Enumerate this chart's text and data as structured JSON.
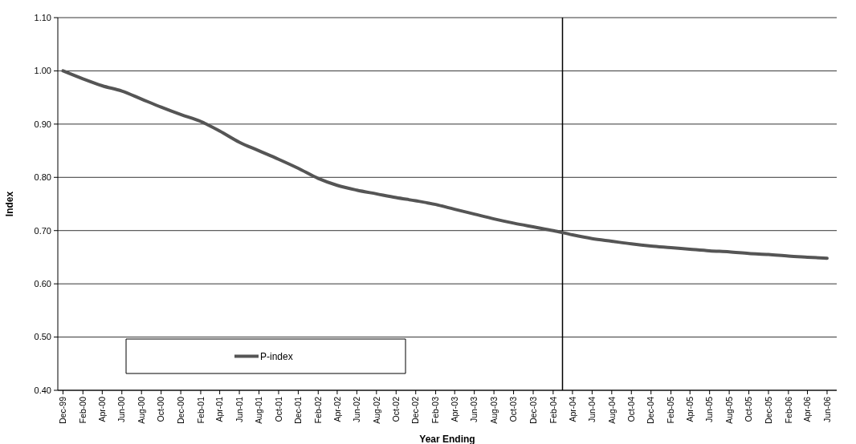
{
  "chart_data": {
    "type": "line",
    "xlabel": "Year Ending",
    "ylabel": "Index",
    "x": [
      "1999-12",
      "2000-02",
      "2000-04",
      "2000-06",
      "2000-08",
      "2000-10",
      "2000-12",
      "2001-02",
      "2001-04",
      "2001-06",
      "2001-08",
      "2001-10",
      "2001-12",
      "2002-02",
      "2002-04",
      "2002-06",
      "2002-08",
      "2002-10",
      "2002-12",
      "2003-02",
      "2003-04",
      "2003-06",
      "2003-08",
      "2003-10",
      "2003-12",
      "2004-02",
      "2004-04",
      "2004-06",
      "2004-08",
      "2004-10",
      "2004-12",
      "2005-02",
      "2005-04",
      "2005-06",
      "2005-08",
      "2005-10",
      "2005-12",
      "2006-02",
      "2006-04",
      "2006-06"
    ],
    "series": [
      {
        "name": "P-index",
        "color": "#555555",
        "values": [
          1.0,
          0.985,
          0.972,
          0.962,
          0.947,
          0.932,
          0.918,
          0.905,
          0.887,
          0.866,
          0.85,
          0.834,
          0.817,
          0.798,
          0.785,
          0.776,
          0.769,
          0.762,
          0.756,
          0.749,
          0.74,
          0.731,
          0.722,
          0.714,
          0.707,
          0.7,
          0.692,
          0.685,
          0.68,
          0.675,
          0.671,
          0.668,
          0.665,
          0.662,
          0.66,
          0.657,
          0.655,
          0.652,
          0.65,
          0.648
        ]
      }
    ],
    "xlim": [
      "1999-11-15",
      "2006-07-01"
    ],
    "xticks": [
      {
        "value": "1999-12",
        "label": "Dec-99"
      },
      {
        "value": "2000-02",
        "label": "Feb-00"
      },
      {
        "value": "2000-04",
        "label": "Apr-00"
      },
      {
        "value": "2000-06",
        "label": "Jun-00"
      },
      {
        "value": "2000-08",
        "label": "Aug-00"
      },
      {
        "value": "2000-10",
        "label": "Oct-00"
      },
      {
        "value": "2000-12",
        "label": "Dec-00"
      },
      {
        "value": "2001-02",
        "label": "Feb-01"
      },
      {
        "value": "2001-04",
        "label": "Apr-01"
      },
      {
        "value": "2001-06",
        "label": "Jun-01"
      },
      {
        "value": "2001-08",
        "label": "Aug-01"
      },
      {
        "value": "2001-10",
        "label": "Oct-01"
      },
      {
        "value": "2001-12",
        "label": "Dec-01"
      },
      {
        "value": "2002-02",
        "label": "Feb-02"
      },
      {
        "value": "2002-04",
        "label": "Apr-02"
      },
      {
        "value": "2002-06",
        "label": "Jun-02"
      },
      {
        "value": "2002-08",
        "label": "Aug-02"
      },
      {
        "value": "2002-10",
        "label": "Oct-02"
      },
      {
        "value": "2002-12",
        "label": "Dec-02"
      },
      {
        "value": "2003-02",
        "label": "Feb-03"
      },
      {
        "value": "2003-04",
        "label": "Apr-03"
      },
      {
        "value": "2003-06",
        "label": "Jun-03"
      },
      {
        "value": "2003-08",
        "label": "Aug-03"
      },
      {
        "value": "2003-10",
        "label": "Oct-03"
      },
      {
        "value": "2003-12",
        "label": "Dec-03"
      },
      {
        "value": "2004-02",
        "label": "Feb-04"
      },
      {
        "value": "2004-04",
        "label": "Apr-04"
      },
      {
        "value": "2004-06",
        "label": "Jun-04"
      },
      {
        "value": "2004-08",
        "label": "Aug-04"
      },
      {
        "value": "2004-10",
        "label": "Oct-04"
      },
      {
        "value": "2004-12",
        "label": "Dec-04"
      },
      {
        "value": "2005-02",
        "label": "Feb-05"
      },
      {
        "value": "2005-04",
        "label": "Apr-05"
      },
      {
        "value": "2005-06",
        "label": "Jun-05"
      },
      {
        "value": "2005-08",
        "label": "Aug-05"
      },
      {
        "value": "2005-10",
        "label": "Oct-05"
      },
      {
        "value": "2005-12",
        "label": "Dec-05"
      },
      {
        "value": "2006-02",
        "label": "Feb-06"
      },
      {
        "value": "2006-04",
        "label": "Apr-06"
      },
      {
        "value": "2006-06",
        "label": "Jun-06"
      }
    ],
    "ylim": [
      0.4,
      1.1
    ],
    "yticks": [
      {
        "value": 0.4,
        "label": "0.40"
      },
      {
        "value": 0.5,
        "label": "0.50"
      },
      {
        "value": 0.6,
        "label": "0.60"
      },
      {
        "value": 0.7,
        "label": "0.70"
      },
      {
        "value": 0.8,
        "label": "0.80"
      },
      {
        "value": 0.9,
        "label": "0.90"
      },
      {
        "value": 1.0,
        "label": "1.00"
      },
      {
        "value": 1.1,
        "label": "1.10"
      }
    ],
    "ref_lines": [
      {
        "axis": "x",
        "value": "2004-03",
        "color": "#000000"
      }
    ],
    "grid": "y",
    "legend": "bottom left",
    "marker": "none",
    "line_style": "solid"
  }
}
